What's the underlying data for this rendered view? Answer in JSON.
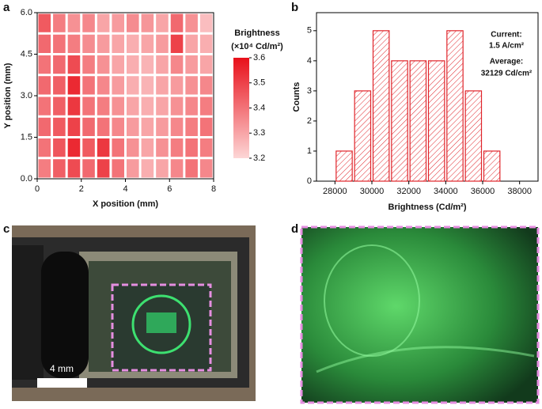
{
  "panel_labels": [
    "a",
    "b",
    "c",
    "d"
  ],
  "photo_c": {
    "scale_bar": "4 mm"
  },
  "chart_data": [
    {
      "type": "heatmap",
      "xlabel": "X position (mm)",
      "ylabel": "Y position (mm)",
      "xlim": [
        0,
        8
      ],
      "xticks": [
        0,
        2,
        4,
        6,
        8
      ],
      "ylim": [
        0,
        6
      ],
      "yticks": [
        {
          "value": 0,
          "label": "0.0"
        },
        1.5,
        {
          "value": 3,
          "label": "3.0"
        },
        4.5,
        {
          "value": 6,
          "label": "6.0"
        }
      ],
      "values": [
        [
          3.45,
          3.38,
          3.34,
          3.36,
          3.3,
          3.32,
          3.35,
          3.33,
          3.3,
          3.42,
          3.34,
          3.25
        ],
        [
          3.42,
          3.4,
          3.38,
          3.35,
          3.32,
          3.3,
          3.28,
          3.3,
          3.32,
          3.5,
          3.3,
          3.28
        ],
        [
          3.4,
          3.42,
          3.48,
          3.38,
          3.34,
          3.3,
          3.28,
          3.27,
          3.3,
          3.36,
          3.32,
          3.3
        ],
        [
          3.42,
          3.44,
          3.55,
          3.4,
          3.36,
          3.32,
          3.28,
          3.27,
          3.3,
          3.32,
          3.34,
          3.36
        ],
        [
          3.4,
          3.44,
          3.52,
          3.4,
          3.38,
          3.34,
          3.3,
          3.28,
          3.3,
          3.34,
          3.36,
          3.38
        ],
        [
          3.42,
          3.45,
          3.5,
          3.42,
          3.4,
          3.36,
          3.32,
          3.3,
          3.32,
          3.36,
          3.38,
          3.4
        ],
        [
          3.4,
          3.46,
          3.55,
          3.45,
          3.52,
          3.4,
          3.34,
          3.3,
          3.34,
          3.38,
          3.4,
          3.38
        ],
        [
          3.38,
          3.44,
          3.48,
          3.42,
          3.5,
          3.4,
          3.32,
          3.28,
          3.3,
          3.36,
          3.4,
          3.36
        ]
      ],
      "colorbar": {
        "title": "Brightness",
        "unit": "(×10⁴ Cd/m²)",
        "lim": [
          3.2,
          3.6
        ],
        "ticks": [
          3.2,
          3.3,
          3.4,
          3.5,
          3.6
        ],
        "colors": [
          "#fdd6d6",
          "#e8101a"
        ]
      }
    },
    {
      "type": "histogram",
      "xlabel": "Brightness (Cd/m²)",
      "ylabel": "Counts",
      "bins": [
        28000,
        29000,
        30000,
        31000,
        32000,
        33000,
        34000,
        35000,
        36000,
        37000
      ],
      "counts": [
        1,
        3,
        5,
        4,
        4,
        4,
        5,
        3,
        1
      ],
      "color": "#e0242a",
      "xlim": [
        27000,
        39000
      ],
      "xticks": [
        28000,
        30000,
        32000,
        34000,
        36000,
        38000
      ],
      "ylim": [
        0,
        5.6
      ],
      "yticks": [
        0,
        1,
        2,
        3,
        4,
        5
      ],
      "annotations": [
        "Current:",
        "1.5 A/cm²",
        "Average:",
        "32129 Cd/cm²"
      ]
    }
  ]
}
